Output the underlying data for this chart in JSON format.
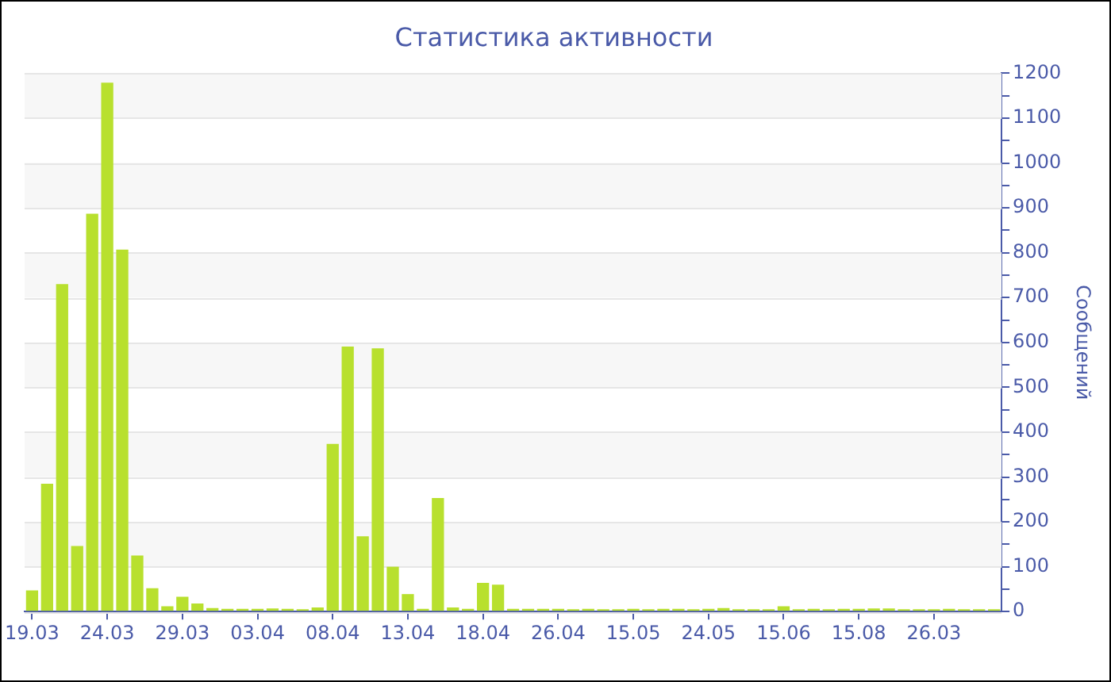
{
  "chart_data": {
    "type": "bar",
    "title": "Статистика активности",
    "ylabel": "Сообщений",
    "categories": [
      "19.03",
      null,
      null,
      null,
      null,
      "24.03",
      null,
      null,
      null,
      null,
      "29.03",
      null,
      null,
      null,
      null,
      "03.04",
      null,
      null,
      null,
      null,
      "08.04",
      null,
      null,
      null,
      null,
      "13.04",
      null,
      null,
      null,
      null,
      "18.04",
      null,
      null,
      null,
      null,
      "26.04",
      null,
      null,
      null,
      null,
      "15.05",
      null,
      null,
      null,
      null,
      "24.05",
      null,
      null,
      null,
      null,
      "15.06",
      null,
      null,
      null,
      null,
      "15.08",
      null,
      null,
      null,
      null,
      "26.03",
      null,
      null,
      null,
      null
    ],
    "values": [
      47,
      285,
      730,
      146,
      887,
      1179,
      807,
      125,
      52,
      12,
      33,
      18,
      8,
      6,
      6,
      6,
      7,
      6,
      5,
      9,
      374,
      591,
      168,
      587,
      100,
      39,
      6,
      253,
      9,
      6,
      64,
      60,
      6,
      6,
      6,
      6,
      5,
      6,
      5,
      5,
      6,
      5,
      6,
      6,
      5,
      6,
      8,
      5,
      5,
      5,
      12,
      5,
      6,
      5,
      6,
      6,
      7,
      7,
      5,
      5,
      5,
      6,
      5,
      5,
      5
    ],
    "color": "#b8e02e",
    "ylim": [
      0,
      1200
    ],
    "yticks": [
      0,
      {
        "value": 50,
        "label": null
      },
      100,
      {
        "value": 150,
        "label": null
      },
      200,
      {
        "value": 250,
        "label": null
      },
      300,
      {
        "value": 350,
        "label": null
      },
      400,
      {
        "value": 450,
        "label": null
      },
      500,
      {
        "value": 550,
        "label": null
      },
      600,
      {
        "value": 650,
        "label": null
      },
      700,
      {
        "value": 750,
        "label": null
      },
      800,
      {
        "value": 850,
        "label": null
      },
      900,
      {
        "value": 950,
        "label": null
      },
      1000,
      {
        "value": 1050,
        "label": null
      },
      1100,
      {
        "value": 1150,
        "label": null
      },
      1200
    ],
    "grid": "y"
  }
}
